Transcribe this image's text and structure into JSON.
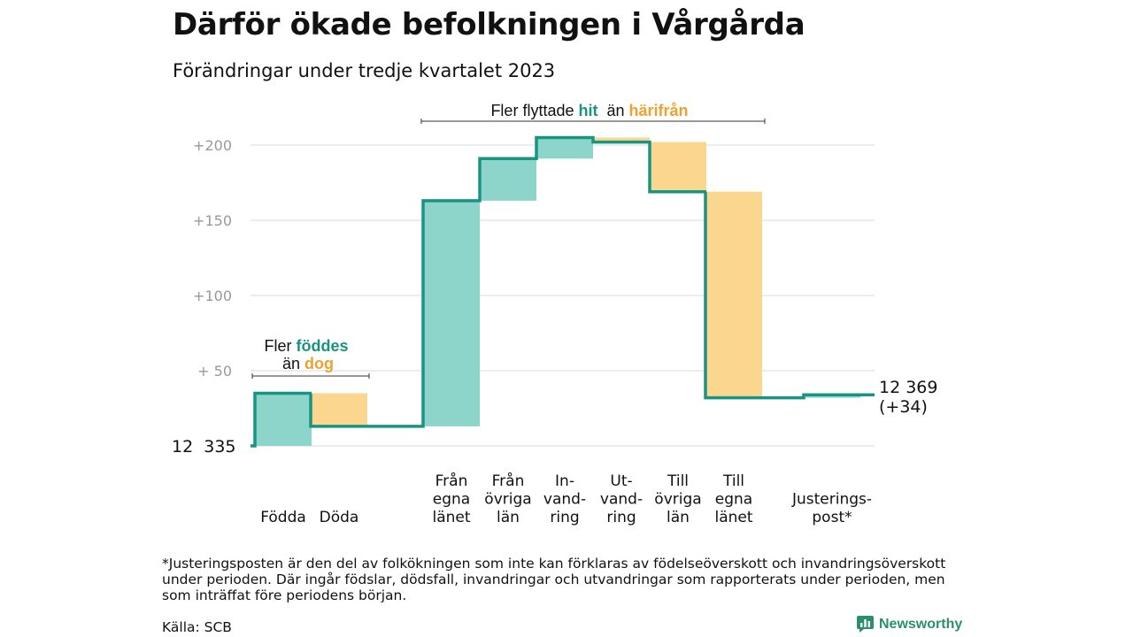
{
  "title": "Därför ökade befolkningen i Vårgårda",
  "subtitle": "Förändringar under tredje kvartalet 2023",
  "footnote": "*Justeringsposten är den del av folkökningen som inte kan förklaras av födelseöverskott och invandringsöverskott under perioden. Där ingår födslar, dödsfall, invandringar och utvandringar som rapporterats under perioden, men som inträffat före periodens början.",
  "source": "Källa: SCB",
  "brand": "Newsworthy",
  "colors": {
    "increase": "#8dd5cb",
    "decrease": "#fad68f",
    "line": "#1a9482",
    "hit": "#1a9482",
    "harifran": "#f0a030",
    "grid": "#d9d9d9",
    "tick": "#999999"
  },
  "chart_data": {
    "type": "waterfall",
    "base_value": 12335,
    "base_label": "12  335",
    "end_label_1": "12 369",
    "end_label_2": "(+34)",
    "y_ticks": [
      {
        "value": 50,
        "label": "+  50"
      },
      {
        "value": 100,
        "label": "+100"
      },
      {
        "value": 150,
        "label": "+150"
      },
      {
        "value": 200,
        "label": "+200"
      }
    ],
    "ylim": [
      0,
      200
    ],
    "bars": [
      {
        "lines": [
          "Födda"
        ],
        "start": 0,
        "end": 35
      },
      {
        "lines": [
          "Döda"
        ],
        "start": 35,
        "end": 13
      },
      {
        "lines": [
          "Från",
          "egna",
          "länet"
        ],
        "start": 13,
        "end": 163
      },
      {
        "lines": [
          "Från",
          "övriga",
          "län"
        ],
        "start": 163,
        "end": 191
      },
      {
        "lines": [
          "In-",
          "vand-",
          "ring"
        ],
        "start": 191,
        "end": 205
      },
      {
        "lines": [
          "Ut-",
          "vand-",
          "ring"
        ],
        "start": 205,
        "end": 202
      },
      {
        "lines": [
          "Till",
          "övriga",
          "län"
        ],
        "start": 202,
        "end": 169
      },
      {
        "lines": [
          "Till",
          "egna",
          "länet"
        ],
        "start": 169,
        "end": 32
      },
      {
        "lines": [
          "Justerings-",
          "post*"
        ],
        "start": 32,
        "end": 34
      }
    ],
    "annotations": {
      "births": {
        "prefix": "Fler",
        "hl1": "föddes",
        "line2": "än",
        "hl2": "dog"
      },
      "moves": {
        "prefix": "Fler flyttade",
        "hl1": "hit",
        "mid": "än",
        "hl2": "härifrån"
      }
    }
  }
}
